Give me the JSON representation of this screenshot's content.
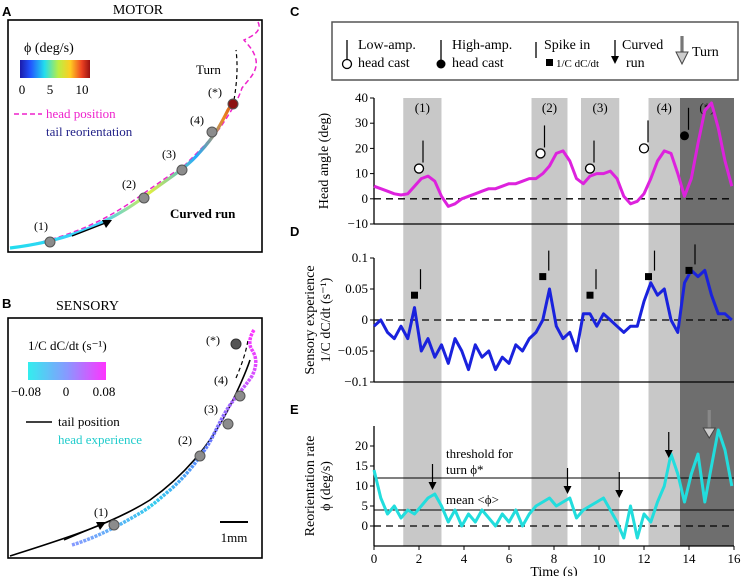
{
  "panel_letters": [
    "A",
    "B",
    "C",
    "D",
    "E"
  ],
  "panel_a": {
    "title": "MOTOR",
    "colorbar_label": "ϕ (deg/s)",
    "colorbar_ticks": [
      "0",
      "5",
      "10"
    ],
    "legend": [
      "head position",
      "tail reorientation"
    ],
    "turn_label": "Turn",
    "run_label": "Curved run",
    "markers": [
      "(1)",
      "(2)",
      "(3)",
      "(4)",
      "(*)"
    ],
    "colors": {
      "head": "#ee22cc",
      "marker": "#8c8c8c"
    }
  },
  "panel_b": {
    "title": "SENSORY",
    "colorbar_label": "1/C dC/dt (s⁻¹)",
    "colorbar_ticks": [
      "−0.08",
      "0",
      "0.08"
    ],
    "legend": [
      "tail position",
      "head experience"
    ],
    "markers": [
      "(1)",
      "(2)",
      "(3)",
      "(4)",
      "(*)"
    ],
    "scalebar_label": "1mm",
    "colors": {
      "head_low": "#33eeee",
      "head_high": "#ff33ff"
    }
  },
  "legend_c": {
    "items": [
      "Low-amp.",
      "head cast",
      "High-amp.",
      "head cast",
      "Spike in",
      "1/C dC/dt",
      "Curved",
      "run",
      "Turn"
    ]
  },
  "shading": {
    "intervals": [
      [
        1.3,
        3.0
      ],
      [
        7.0,
        8.6
      ],
      [
        9.2,
        10.9
      ],
      [
        12.2,
        13.6
      ],
      [
        13.6,
        16.0
      ]
    ],
    "labels": [
      "(1)",
      "(2)",
      "(3)",
      "(4)",
      "(*)"
    ]
  },
  "chart_data": [
    {
      "id": "C",
      "type": "line",
      "ylabel": "Head angle (deg)",
      "xlim": [
        0,
        16
      ],
      "ylim": [
        -10,
        40
      ],
      "yticks": [
        "40",
        "30",
        "20",
        "10",
        "0",
        "−10"
      ],
      "ytick_values": [
        40,
        30,
        20,
        10,
        0,
        -10
      ],
      "color": "#dd22dd",
      "series": [
        {
          "name": "head angle",
          "x": [
            0,
            0.3,
            0.6,
            0.9,
            1.2,
            1.5,
            1.8,
            2.1,
            2.4,
            2.7,
            3.0,
            3.3,
            3.6,
            3.9,
            4.2,
            4.5,
            4.8,
            5.1,
            5.4,
            5.7,
            6.0,
            6.3,
            6.6,
            6.9,
            7.2,
            7.5,
            7.8,
            8.1,
            8.4,
            8.7,
            9.0,
            9.3,
            9.6,
            9.9,
            10.2,
            10.5,
            10.8,
            11.1,
            11.4,
            11.7,
            12.0,
            12.3,
            12.6,
            12.9,
            13.2,
            13.5,
            13.8,
            14.1,
            14.4,
            14.7,
            15.0,
            15.3,
            15.6,
            15.9
          ],
          "y": [
            5,
            4,
            3,
            2,
            1.5,
            2,
            5,
            8,
            9,
            7,
            1,
            -3,
            -2,
            0,
            1,
            2,
            3,
            4,
            4,
            5,
            6,
            6,
            7,
            8,
            8,
            10,
            13,
            18,
            19,
            15,
            8,
            6,
            9,
            10,
            10,
            11,
            8,
            1,
            -2,
            -1,
            2,
            8,
            15,
            19,
            18,
            10,
            1,
            8,
            22,
            35,
            38,
            28,
            15,
            5
          ]
        }
      ],
      "markers": [
        {
          "kind": "low-amp head cast",
          "x": 2.0,
          "y": 12
        },
        {
          "kind": "low-amp head cast",
          "x": 7.4,
          "y": 18
        },
        {
          "kind": "low-amp head cast",
          "x": 9.6,
          "y": 12
        },
        {
          "kind": "low-amp head cast",
          "x": 12.0,
          "y": 20
        },
        {
          "kind": "high-amp head cast",
          "x": 13.8,
          "y": 25
        }
      ]
    },
    {
      "id": "D",
      "type": "line",
      "ylabel": "Sensory experience",
      "ylabel2": "1/C dC/dt (s⁻¹)",
      "xlim": [
        0,
        16
      ],
      "ylim": [
        -0.1,
        0.1
      ],
      "yticks": [
        "0.1",
        "0.05",
        "0",
        "−0.05",
        "−0.1"
      ],
      "ytick_values": [
        0.1,
        0.05,
        0,
        -0.05,
        -0.1
      ],
      "color": "#1a22dd",
      "series": [
        {
          "name": "1/C dC/dt",
          "x": [
            0,
            0.3,
            0.6,
            0.9,
            1.2,
            1.5,
            1.8,
            2.1,
            2.4,
            2.7,
            3.0,
            3.3,
            3.6,
            3.9,
            4.2,
            4.5,
            4.8,
            5.1,
            5.4,
            5.7,
            6.0,
            6.3,
            6.6,
            6.9,
            7.2,
            7.5,
            7.8,
            8.1,
            8.4,
            8.7,
            9.0,
            9.3,
            9.6,
            9.9,
            10.2,
            10.5,
            10.8,
            11.1,
            11.4,
            11.7,
            12.0,
            12.3,
            12.6,
            12.9,
            13.2,
            13.5,
            13.8,
            14.1,
            14.4,
            14.7,
            15.0,
            15.3,
            15.6,
            15.9
          ],
          "y": [
            -0.01,
            0.0,
            -0.02,
            -0.03,
            -0.01,
            -0.03,
            0.02,
            -0.05,
            -0.03,
            -0.06,
            -0.04,
            -0.07,
            -0.03,
            -0.05,
            -0.08,
            -0.04,
            -0.06,
            -0.05,
            -0.08,
            -0.06,
            -0.07,
            -0.04,
            -0.05,
            -0.03,
            -0.02,
            0.0,
            0.05,
            -0.01,
            -0.03,
            -0.02,
            -0.05,
            0.01,
            0.01,
            -0.01,
            0.01,
            0.0,
            -0.01,
            -0.02,
            -0.01,
            -0.01,
            0.03,
            0.06,
            0.04,
            0.05,
            0.0,
            -0.02,
            0.06,
            0.08,
            0.07,
            0.08,
            0.04,
            0.01,
            0.01,
            0.0
          ]
        }
      ],
      "markers": [
        {
          "kind": "spike",
          "x": 1.8,
          "y": 0.04
        },
        {
          "kind": "spike",
          "x": 7.5,
          "y": 0.07
        },
        {
          "kind": "spike",
          "x": 9.6,
          "y": 0.04
        },
        {
          "kind": "spike",
          "x": 12.2,
          "y": 0.07
        },
        {
          "kind": "spike",
          "x": 14.0,
          "y": 0.08
        }
      ]
    },
    {
      "id": "E",
      "type": "line",
      "ylabel": "Reorientation rate",
      "ylabel2": "ϕ (deg/s)",
      "xlabel": "Time (s)",
      "xlim": [
        0,
        16
      ],
      "ylim": [
        -5,
        25
      ],
      "xticks": [
        "0",
        "2",
        "4",
        "6",
        "8",
        "10",
        "12",
        "14",
        "16"
      ],
      "xtick_values": [
        0,
        2,
        4,
        6,
        8,
        10,
        12,
        14,
        16
      ],
      "yticks": [
        "20",
        "15",
        "10",
        "5",
        "0"
      ],
      "ytick_values": [
        20,
        15,
        10,
        5,
        0
      ],
      "color": "#22dddd",
      "threshold": {
        "label": "threshold for",
        "label2": "turn ϕ*",
        "value": 12
      },
      "mean": {
        "label": "mean <ϕ>",
        "value": 4
      },
      "series": [
        {
          "name": "ϕ",
          "x": [
            0,
            0.3,
            0.6,
            0.9,
            1.2,
            1.5,
            1.8,
            2.1,
            2.4,
            2.7,
            3.0,
            3.3,
            3.6,
            3.9,
            4.2,
            4.5,
            4.8,
            5.1,
            5.4,
            5.7,
            6.0,
            6.3,
            6.6,
            6.9,
            7.2,
            7.5,
            7.8,
            8.1,
            8.4,
            8.7,
            9.0,
            9.3,
            9.6,
            9.9,
            10.2,
            10.5,
            10.8,
            11.1,
            11.4,
            11.7,
            12.0,
            12.3,
            12.6,
            12.9,
            13.2,
            13.5,
            13.8,
            14.1,
            14.4,
            14.7,
            15.0,
            15.3,
            15.6,
            15.9
          ],
          "y": [
            14,
            7,
            3,
            5,
            2,
            4,
            3,
            5,
            7,
            8,
            5,
            1,
            4,
            0,
            3,
            1,
            4,
            2,
            0,
            3,
            1,
            4,
            0,
            3,
            5,
            6,
            7,
            5,
            6,
            7,
            2,
            4,
            5,
            6,
            7,
            4,
            1,
            -3,
            5,
            -3,
            3,
            1,
            6,
            10,
            18,
            13,
            6,
            13,
            18,
            6,
            15,
            24,
            19,
            10
          ]
        }
      ],
      "markers": [
        {
          "kind": "curved run",
          "x": 2.6,
          "y": 9
        },
        {
          "kind": "curved run",
          "x": 8.6,
          "y": 8
        },
        {
          "kind": "curved run",
          "x": 10.9,
          "y": 7
        },
        {
          "kind": "curved run",
          "x": 13.1,
          "y": 17
        },
        {
          "kind": "turn",
          "x": 14.9,
          "y": 22
        }
      ]
    }
  ]
}
